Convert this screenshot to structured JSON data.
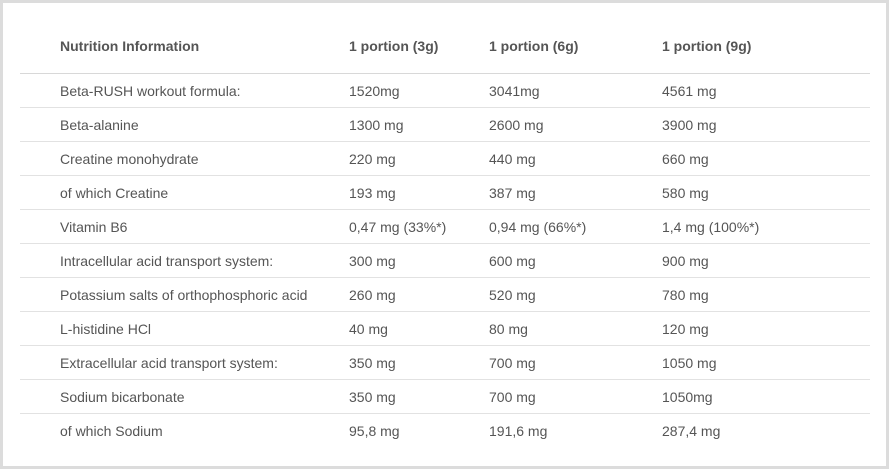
{
  "table": {
    "headers": [
      "Nutrition Information",
      "1 portion (3g)",
      "1 portion (6g)",
      "1 portion (9g)"
    ],
    "rows": [
      [
        "Beta-RUSH workout formula:",
        "1520mg",
        "3041mg",
        "4561 mg"
      ],
      [
        "Beta-alanine",
        "1300 mg",
        "2600 mg",
        "3900 mg"
      ],
      [
        "Creatine monohydrate",
        "220 mg",
        "440 mg",
        "660 mg"
      ],
      [
        "of which Creatine",
        "193 mg",
        "387 mg",
        "580 mg"
      ],
      [
        "Vitamin B6",
        "0,47 mg (33%*)",
        "0,94 mg (66%*)",
        "1,4 mg (100%*)"
      ],
      [
        "Intracellular acid transport system:",
        "300 mg",
        "600 mg",
        "900 mg"
      ],
      [
        "Potassium salts of orthophosphoric acid",
        "260 mg",
        "520 mg",
        "780 mg"
      ],
      [
        "L-histidine HCl",
        "40 mg",
        "80 mg",
        "120 mg"
      ],
      [
        "Extracellular acid transport system:",
        "350 mg",
        "700 mg",
        "1050 mg"
      ],
      [
        "Sodium bicarbonate",
        "350 mg",
        "700 mg",
        "1050mg"
      ],
      [
        "of which Sodium",
        "95,8 mg",
        "191,6 mg",
        "287,4 mg"
      ]
    ]
  },
  "colors": {
    "border": "#dcdcdc",
    "row_divider": "#e2e2e2",
    "text": "#555555"
  }
}
